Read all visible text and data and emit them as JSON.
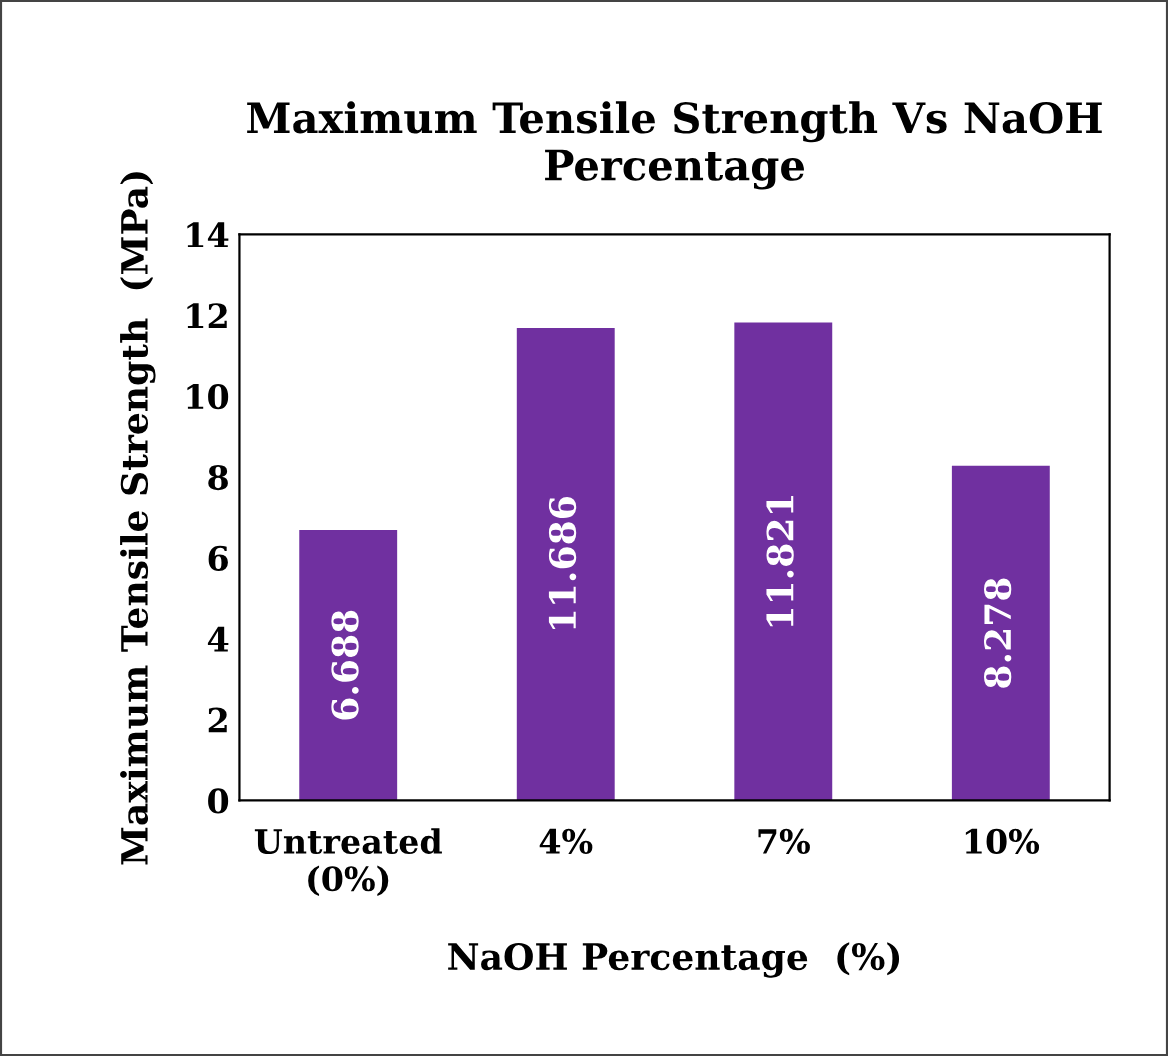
{
  "chart_data": {
    "type": "bar",
    "title": "Maximum Tensile Strength Vs NaOH Percentage",
    "xlabel": "NaOH Percentage  (%)",
    "ylabel": "Maximum Tensile Strength  (MPa)",
    "categories": [
      "Untreated\n(0%)",
      "4%",
      "7%",
      "10%"
    ],
    "values": [
      6.688,
      11.686,
      11.821,
      8.278
    ],
    "color": "#7030a0",
    "ylim": [
      0,
      14
    ],
    "yticks": [
      0,
      2,
      4,
      6,
      8,
      10,
      12,
      14
    ],
    "grid": false,
    "data_labels": true
  }
}
